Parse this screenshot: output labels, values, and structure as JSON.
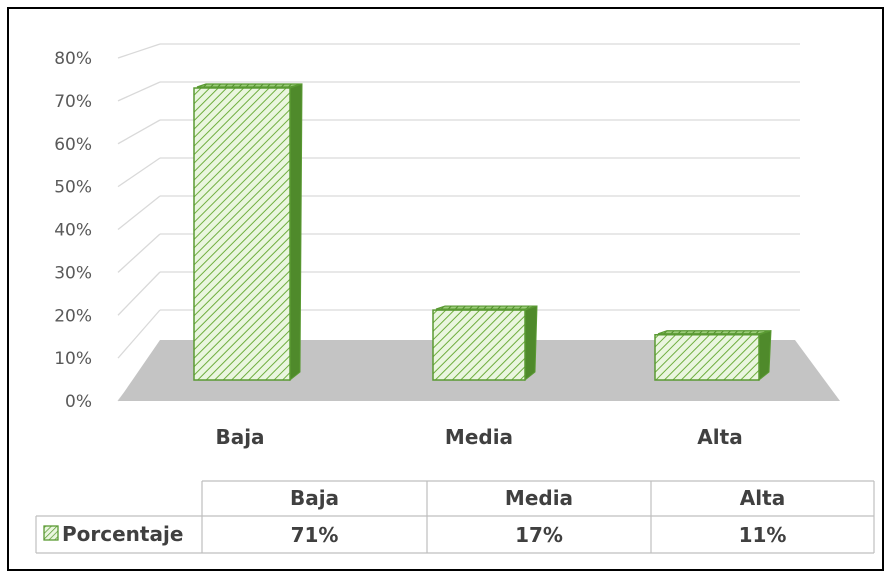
{
  "chart_data": {
    "type": "bar",
    "categories": [
      "Baja",
      "Media",
      "Alta"
    ],
    "series": [
      {
        "name": "Porcentaje",
        "values": [
          71,
          17,
          11
        ]
      }
    ],
    "data_labels": [
      "71%",
      "17%",
      "11%"
    ],
    "y_ticks": [
      "0%",
      "10%",
      "20%",
      "30%",
      "40%",
      "50%",
      "60%",
      "70%",
      "80%"
    ],
    "ylim": [
      0,
      80
    ],
    "grid": true,
    "style": "3d-bar-hatched",
    "legend": "data-table-below",
    "colors": {
      "bar_border": "#5a9a33",
      "bar_fill": "#e6f4d8",
      "hatch": "#6fae3f",
      "floor": "#c4c4c4",
      "grid": "#d9d9d9"
    }
  }
}
